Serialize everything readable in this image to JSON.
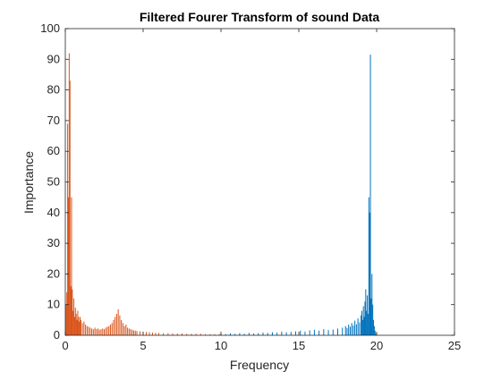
{
  "chart_data": {
    "type": "bar",
    "title": "Filtered Fourer Transform of sound Data",
    "xlabel": "Frequency",
    "ylabel": "Importance",
    "xlim": [
      0,
      25
    ],
    "ylim": [
      0,
      100
    ],
    "xticks": [
      0,
      5,
      10,
      15,
      20,
      25
    ],
    "yticks": [
      0,
      10,
      20,
      30,
      40,
      50,
      60,
      70,
      80,
      90,
      100
    ],
    "grid": false,
    "legend": "none",
    "series": [
      {
        "color": "#0072BD",
        "x": [
          10.0,
          10.3,
          10.6,
          10.9,
          11.2,
          11.5,
          11.8,
          12.1,
          12.4,
          12.7,
          13.0,
          13.3,
          13.6,
          13.9,
          14.2,
          14.5,
          14.8,
          15.1,
          15.4,
          15.7,
          16.0,
          16.3,
          16.6,
          16.9,
          17.2,
          17.5,
          17.8,
          18.0,
          18.1,
          18.2,
          18.3,
          18.4,
          18.5,
          18.6,
          18.7,
          18.8,
          18.9,
          19.0,
          19.05,
          19.1,
          19.15,
          19.2,
          19.25,
          19.3,
          19.35,
          19.4,
          19.45,
          19.5,
          19.55,
          19.6,
          19.65,
          19.7,
          19.75,
          19.8,
          19.85,
          19.9,
          19.95
        ],
        "values": [
          0.5,
          0.4,
          0.6,
          0.5,
          0.7,
          0.5,
          0.8,
          0.6,
          0.7,
          0.9,
          0.8,
          1.0,
          0.9,
          1.2,
          1.0,
          1.1,
          1.3,
          1.5,
          1.2,
          1.6,
          1.8,
          1.5,
          2.0,
          1.7,
          1.9,
          2.2,
          2.5,
          3.0,
          2.4,
          3.5,
          2.8,
          4.0,
          3.2,
          4.8,
          3.6,
          5.5,
          4.2,
          6.5,
          8.0,
          5.0,
          9.5,
          6.0,
          11.0,
          15.0,
          8.0,
          13.0,
          7.0,
          45.0,
          40.0,
          91.5,
          12.0,
          20.0,
          10.0,
          5.0,
          3.0,
          1.5,
          0.5
        ]
      },
      {
        "color": "#D95319",
        "x": [
          0.05,
          0.1,
          0.15,
          0.2,
          0.25,
          0.3,
          0.35,
          0.4,
          0.45,
          0.5,
          0.55,
          0.6,
          0.65,
          0.7,
          0.75,
          0.8,
          0.85,
          0.9,
          0.95,
          1.0,
          1.1,
          1.2,
          1.3,
          1.4,
          1.5,
          1.6,
          1.7,
          1.8,
          1.9,
          2.0,
          2.1,
          2.2,
          2.3,
          2.4,
          2.5,
          2.6,
          2.7,
          2.8,
          2.9,
          3.0,
          3.1,
          3.2,
          3.3,
          3.4,
          3.5,
          3.6,
          3.7,
          3.8,
          3.9,
          4.0,
          4.1,
          4.2,
          4.3,
          4.4,
          4.5,
          4.6,
          4.8,
          5.0,
          5.2,
          5.4,
          5.6,
          5.8,
          6.0,
          6.3,
          6.6,
          6.9,
          7.2,
          7.5,
          7.8,
          8.1,
          8.4,
          8.7,
          9.0,
          9.3,
          9.6,
          9.9
        ],
        "values": [
          10.0,
          14.0,
          69.0,
          45.0,
          92.0,
          83.0,
          16.0,
          45.0,
          15.0,
          8.0,
          12.0,
          6.0,
          9.0,
          7.0,
          5.0,
          8.0,
          6.0,
          4.5,
          6.0,
          5.0,
          4.0,
          4.5,
          3.5,
          3.0,
          2.8,
          2.5,
          2.2,
          2.0,
          2.5,
          2.0,
          2.2,
          1.8,
          2.0,
          2.2,
          2.0,
          2.5,
          2.8,
          3.0,
          3.5,
          4.0,
          5.0,
          6.0,
          7.0,
          8.5,
          6.5,
          5.0,
          4.0,
          3.0,
          3.5,
          2.5,
          2.2,
          2.0,
          1.8,
          1.6,
          1.5,
          1.4,
          1.3,
          1.2,
          1.1,
          1.0,
          0.9,
          0.8,
          0.8,
          0.7,
          0.7,
          0.6,
          0.6,
          0.6,
          0.5,
          0.5,
          0.5,
          0.5,
          0.4,
          0.4,
          0.4,
          0.4
        ]
      }
    ]
  }
}
